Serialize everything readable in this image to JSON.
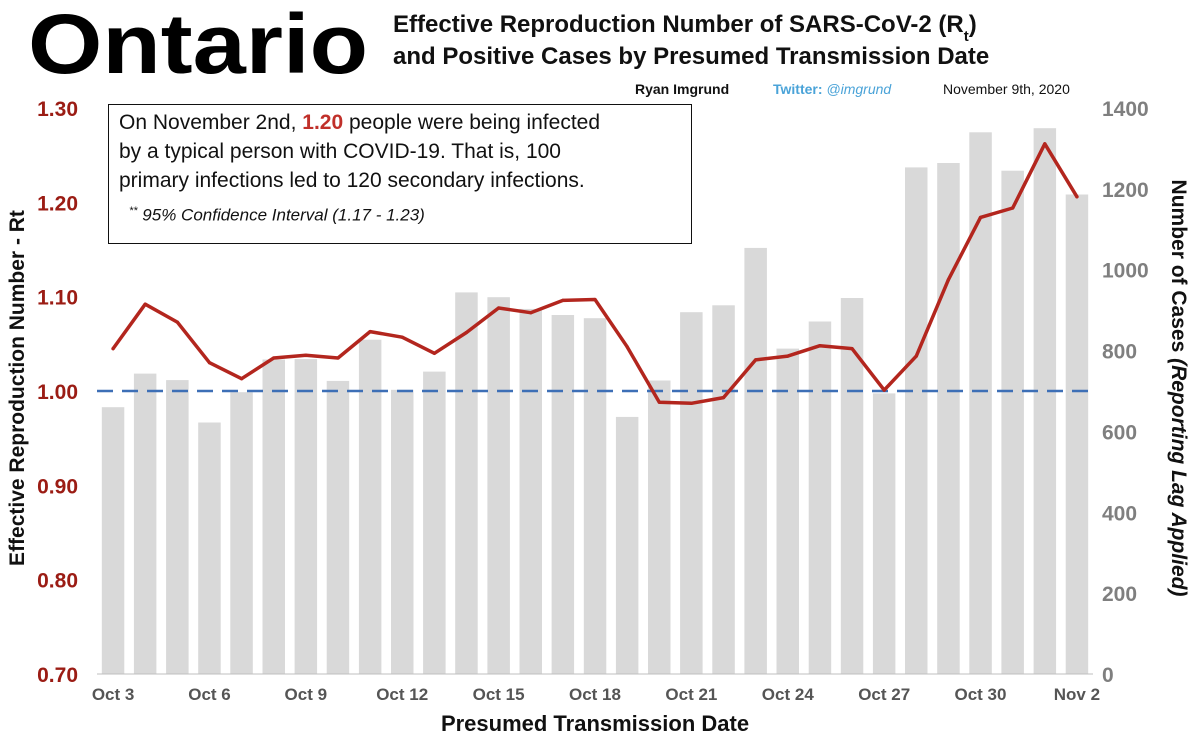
{
  "header": {
    "region": "Ontario",
    "title_line1_prefix": "Effective Reproduction Number of SARS-CoV-2 (R",
    "title_line1_sub": "t",
    "title_line1_suffix": ")",
    "title_line2": "and Positive Cases by Presumed Transmission Date",
    "author": "Ryan Imgrund",
    "twitter_label": "Twitter:",
    "twitter_handle": "@imgrund",
    "date": "November 9th, 2020"
  },
  "annotation": {
    "line1_before": "On November 2nd,",
    "line1_value": "1.20",
    "line1_after": "people were being infected",
    "line2": "by a typical person with COVID-19. That is, 100",
    "line3": "primary infections led to 120 secondary infections.",
    "ci_prefix": "**",
    "ci": "95% Confidence Interval (1.17 - 1.23)"
  },
  "colors": {
    "rt_line": "#b3261e",
    "bars": "#d9d9d9",
    "threshold": "#3d6fb6",
    "left_axis": "#9b1c14",
    "right_axis": "#7f7f7f",
    "twitter": "#4aa3d8"
  },
  "chart_data": {
    "type": "bar+line",
    "title": "Effective Reproduction Number of SARS-CoV-2 (Rt) and Positive Cases by Presumed Transmission Date",
    "xlabel": "Presumed Transmission Date",
    "ylabel_left": "Effective Reproduction Number - Rt",
    "ylabel_right_main": "Number of Cases",
    "ylabel_right_italic": "(Reporting Lag Applied)",
    "x_tick_labels": [
      "Oct 3",
      "Oct 6",
      "Oct 9",
      "Oct 12",
      "Oct 15",
      "Oct 18",
      "Oct 21",
      "Oct 24",
      "Oct 27",
      "Oct 30",
      "Nov 2"
    ],
    "categories": [
      "Oct 3",
      "Oct 4",
      "Oct 5",
      "Oct 6",
      "Oct 7",
      "Oct 8",
      "Oct 9",
      "Oct 10",
      "Oct 11",
      "Oct 12",
      "Oct 13",
      "Oct 14",
      "Oct 15",
      "Oct 16",
      "Oct 17",
      "Oct 18",
      "Oct 19",
      "Oct 20",
      "Oct 21",
      "Oct 22",
      "Oct 23",
      "Oct 24",
      "Oct 25",
      "Oct 26",
      "Oct 27",
      "Oct 28",
      "Oct 29",
      "Oct 30",
      "Oct 31",
      "Nov 1",
      "Nov 2"
    ],
    "cases": [
      660,
      743,
      727,
      622,
      697,
      778,
      779,
      725,
      827,
      703,
      748,
      944,
      932,
      903,
      888,
      880,
      636,
      726,
      895,
      912,
      1054,
      805,
      872,
      930,
      694,
      1253,
      1264,
      1340,
      1245,
      1350,
      1186
    ],
    "rt": [
      1.045,
      1.092,
      1.073,
      1.03,
      1.013,
      1.035,
      1.038,
      1.035,
      1.063,
      1.057,
      1.04,
      1.062,
      1.088,
      1.083,
      1.096,
      1.097,
      1.047,
      0.988,
      0.987,
      0.993,
      1.033,
      1.037,
      1.048,
      1.045,
      1.001,
      1.037,
      1.118,
      1.184,
      1.194,
      1.262,
      1.206
    ],
    "rt_axis": {
      "min": 0.7,
      "max": 1.3,
      "ticks": [
        "0.70",
        "0.80",
        "0.90",
        "1.00",
        "1.10",
        "1.20",
        "1.30"
      ]
    },
    "cases_axis": {
      "min": 0,
      "max": 1400,
      "ticks": [
        "0",
        "200",
        "400",
        "600",
        "800",
        "1000",
        "1200",
        "1400"
      ]
    },
    "reference_line": {
      "rt": 1.0,
      "style": "dashed"
    }
  }
}
